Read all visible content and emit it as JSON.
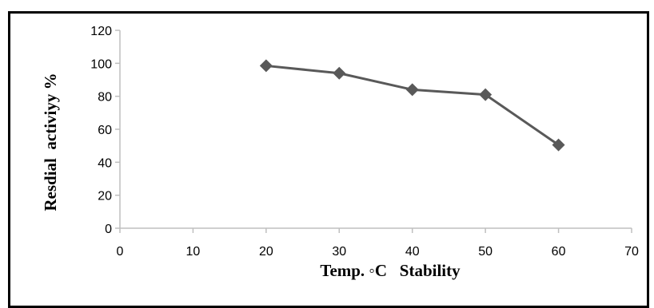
{
  "chart_data": {
    "type": "line",
    "title": "",
    "xlabel": "Temp. ◦C   Stability",
    "ylabel": "Resdial  activiyy %",
    "xlim": [
      0,
      70
    ],
    "ylim": [
      0,
      120
    ],
    "xticks": [
      0,
      10,
      20,
      30,
      40,
      50,
      60,
      70
    ],
    "yticks": [
      0,
      20,
      40,
      60,
      80,
      100,
      120
    ],
    "grid": false,
    "legend": "none",
    "series": [
      {
        "x": [
          20,
          30,
          40,
          50,
          60
        ],
        "y": [
          98.5,
          94,
          84,
          81,
          50.5
        ],
        "marker": "diamond",
        "color": "#595959"
      }
    ],
    "colors": {
      "line": "#595959",
      "marker": "#595959",
      "axis": "#bfbfbf",
      "frame": "#000000"
    }
  }
}
